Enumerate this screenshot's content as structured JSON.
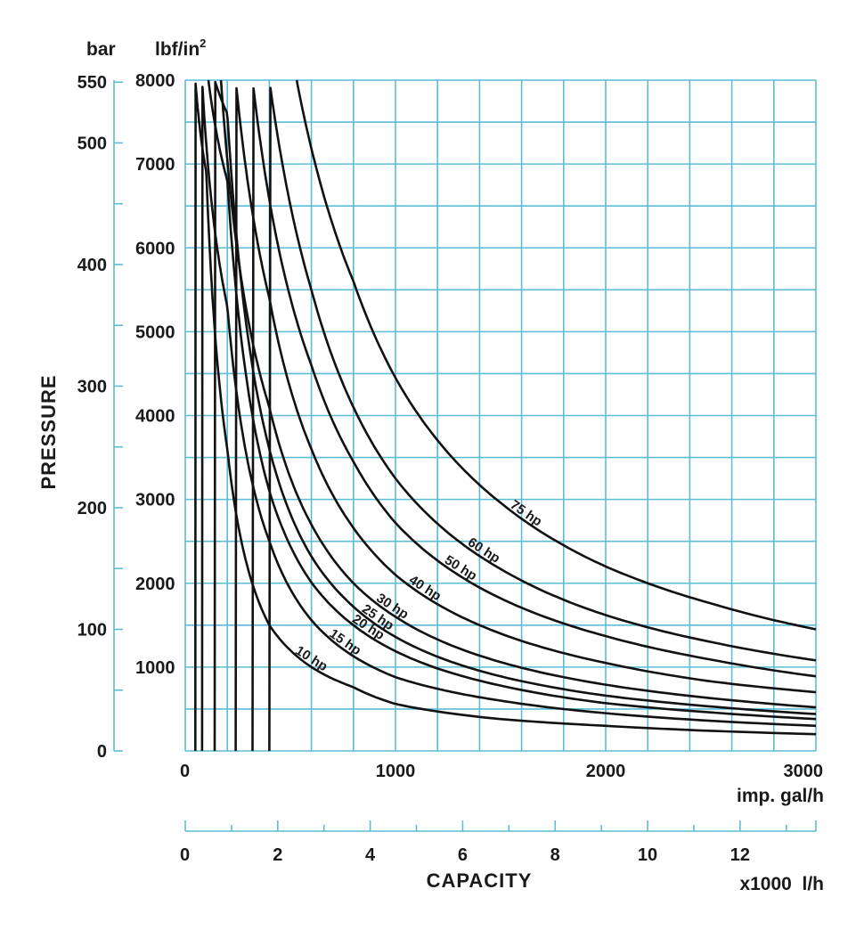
{
  "chart_data": {
    "type": "line",
    "title": "",
    "ylabel": "PRESSURE",
    "xlabel": "CAPACITY",
    "grid": true,
    "colors": {
      "grid": "#5bbcd6",
      "curves": "#111111",
      "text": "#1a1a1a"
    },
    "x_axis_primary": {
      "unit": "imp. gal/h",
      "ticks": [
        0,
        1000,
        2000,
        3000
      ],
      "tick_labels": [
        "0",
        "1000",
        "2000",
        "3000"
      ],
      "range": [
        0,
        3000
      ]
    },
    "x_axis_secondary": {
      "unit": "x1000  l/h",
      "ticks": [
        0,
        2,
        4,
        6,
        8,
        10,
        12
      ],
      "tick_labels": [
        "0",
        "2",
        "4",
        "6",
        "8",
        "10",
        "12"
      ],
      "range": [
        0,
        13.64
      ]
    },
    "y_axis_inner": {
      "unit_base": "lbf/in",
      "unit_exp": "2",
      "ticks": [
        1000,
        2000,
        3000,
        4000,
        5000,
        6000,
        7000,
        8000
      ],
      "tick_labels": [
        "1000",
        "2000",
        "3000",
        "4000",
        "5000",
        "6000",
        "7000",
        "8000"
      ],
      "range": [
        0,
        8000
      ]
    },
    "y_axis_outer": {
      "unit": "bar",
      "ticks": [
        0,
        100,
        200,
        300,
        400,
        500,
        550
      ],
      "tick_labels": [
        "0",
        "100",
        "200",
        "300",
        "400",
        "500",
        "550"
      ],
      "range": [
        0,
        551.6
      ]
    },
    "series": [
      {
        "name": "10 hp",
        "x": [
          48,
          100,
          200,
          400,
          600,
          800,
          1000,
          1500,
          2000,
          2500,
          3000
        ],
        "y": [
          8000,
          6900,
          3600,
          1500,
          1000,
          760,
          560,
          380,
          300,
          240,
          200
        ]
      },
      {
        "name": "15 hp",
        "x": [
          80,
          200,
          400,
          600,
          800,
          1000,
          1500,
          2000,
          2500,
          3000
        ],
        "y": [
          8000,
          5300,
          2500,
          1560,
          1130,
          880,
          600,
          450,
          360,
          300
        ]
      },
      {
        "name": "20 hp",
        "x": [
          110,
          200,
          400,
          600,
          800,
          1000,
          1500,
          2000,
          2500,
          3000
        ],
        "y": [
          8000,
          6800,
          3100,
          2010,
          1500,
          1190,
          780,
          570,
          460,
          380
        ]
      },
      {
        "name": "25 hp",
        "x": [
          140,
          200,
          400,
          600,
          800,
          1000,
          1500,
          2000,
          2500,
          3000
        ],
        "y": [
          8000,
          7600,
          3600,
          2320,
          1720,
          1360,
          890,
          660,
          530,
          440
        ]
      },
      {
        "name": "30 hp",
        "x": [
          170,
          400,
          600,
          800,
          1000,
          1500,
          2000,
          2500,
          3000
        ],
        "y": [
          8000,
          4100,
          2700,
          2000,
          1600,
          1060,
          790,
          630,
          520
        ]
      },
      {
        "name": "40 hp",
        "x": [
          240,
          400,
          600,
          800,
          1000,
          1500,
          2000,
          2500,
          3000
        ],
        "y": [
          8000,
          5400,
          3600,
          2660,
          2100,
          1400,
          1050,
          830,
          700
        ]
      },
      {
        "name": "50 hp",
        "x": [
          320,
          600,
          800,
          1000,
          1500,
          2000,
          2500,
          3000
        ],
        "y": [
          8000,
          4600,
          3450,
          2720,
          1820,
          1370,
          1090,
          890
        ]
      },
      {
        "name": "60 hp",
        "x": [
          400,
          600,
          800,
          1000,
          1500,
          2000,
          2500,
          3000
        ],
        "y": [
          8000,
          5500,
          4100,
          3250,
          2170,
          1620,
          1300,
          1080
        ]
      },
      {
        "name": "75 hp",
        "x": [
          530,
          800,
          1000,
          1500,
          2000,
          2500,
          3000
        ],
        "y": [
          8000,
          5600,
          4450,
          2960,
          2200,
          1760,
          1450
        ]
      }
    ]
  }
}
